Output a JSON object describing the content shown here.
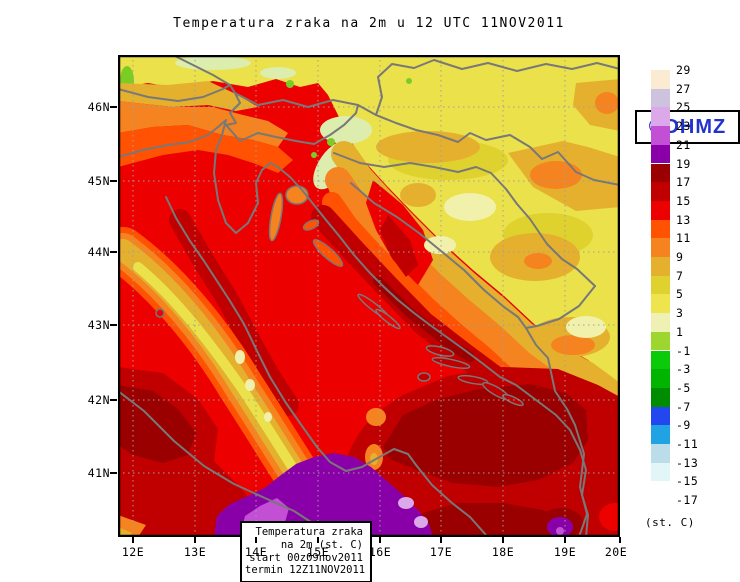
{
  "title": "Temperatura zraka na 2m u 12 UTC 11NOV2011",
  "branding": {
    "label": "©DHMZ",
    "color": "#2233CC"
  },
  "info_box": {
    "lines": [
      "Temperatura zraka",
      "na 2m (st. C)",
      "start 00z09nov2011",
      "termin 12Z11NOV2011"
    ]
  },
  "axes": {
    "x": {
      "labels": [
        "12E",
        "13E",
        "14E",
        "15E",
        "16E",
        "17E",
        "18E",
        "19E",
        "20E"
      ]
    },
    "y": {
      "labels": [
        "46N",
        "45N",
        "44N",
        "43N",
        "42N",
        "41N"
      ]
    }
  },
  "colorbar": {
    "unit": "(st. C)",
    "tick_labels": [
      "29",
      "27",
      "25",
      "23",
      "21",
      "19",
      "17",
      "15",
      "13",
      "11",
      "9",
      "7",
      "5",
      "3",
      "1",
      "-1",
      "-3",
      "-5",
      "-7",
      "-9",
      "-11",
      "-13",
      "-15",
      "-17"
    ],
    "colors_top_to_bottom": [
      "#FCEBD3",
      "#CEC3DF",
      "#DBA8E9",
      "#C34FD4",
      "#8A00A8",
      "#9B0000",
      "#C00000",
      "#EC0000",
      "#FF5203",
      "#F5831F",
      "#E5B02E",
      "#E0D22E",
      "#EDE44E",
      "#EFF0B4",
      "#9CD62F",
      "#0ACA0A",
      "#00B400",
      "#008C00",
      "#2347EE",
      "#20A3E3",
      "#BBDCE9",
      "#E2F6F8",
      "#FFFFFF"
    ]
  },
  "chart_data": {
    "type": "heatmap",
    "title": "Temperatura zraka na 2m u 12 UTC 11NOV2011",
    "x_ticks": [
      "12E",
      "13E",
      "14E",
      "15E",
      "16E",
      "17E",
      "18E",
      "19E",
      "20E"
    ],
    "y_ticks": [
      "41N",
      "42N",
      "43N",
      "44N",
      "45N",
      "46N"
    ],
    "legend_levels_c": [
      29,
      27,
      25,
      23,
      21,
      19,
      17,
      15,
      13,
      11,
      9,
      7,
      5,
      3,
      1,
      -1,
      -3,
      -5,
      -7,
      -9,
      -11,
      -13,
      -15,
      -17
    ],
    "unit": "(st. C)",
    "legend_position": "right"
  },
  "palette": {
    "red": "#EC0000",
    "darkRed": "#C00000",
    "maroon": "#9B0000",
    "orangeRed": "#FF5203",
    "orange": "#F5831F",
    "gold": "#E5B02E",
    "yellow": "#EBE14B",
    "olive": "#E0D22E",
    "paleYellow": "#F1F1AC",
    "paleGreen": "#DCEDAD",
    "green": "#7BCC25",
    "purple": "#8A00A8",
    "orchid": "#C34FD4",
    "lightOrchid": "#DBA8E9",
    "coastGray": "#787878",
    "borderGray": "#6E6E6E",
    "gridGray": "#A0A0A0"
  }
}
